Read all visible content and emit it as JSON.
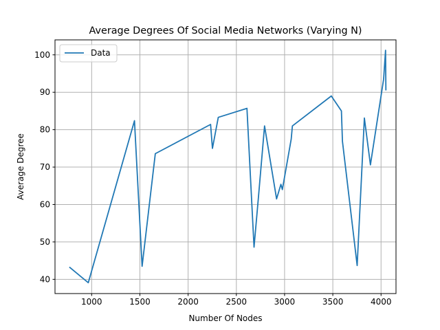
{
  "chart_data": {
    "type": "line",
    "title": "Average Degrees Of Social Media Networks (Varying N)",
    "xlabel": "Number Of Nodes",
    "ylabel": "Average Degree",
    "xlim": [
      620,
      4155
    ],
    "ylim": [
      36.2,
      104.0
    ],
    "xticks": [
      1000,
      1500,
      2000,
      2500,
      3000,
      3500,
      4000
    ],
    "yticks": [
      40,
      50,
      60,
      70,
      80,
      90,
      100
    ],
    "grid": true,
    "legend_position": "upper-left",
    "series": [
      {
        "name": "Data",
        "color": "#1f77b4",
        "x": [
          769,
          965,
          1444,
          1523,
          1660,
          2233,
          2252,
          2313,
          2610,
          2683,
          2728,
          2792,
          2917,
          2962,
          2977,
          3069,
          3081,
          3484,
          3589,
          3600,
          3752,
          3827,
          3890,
          4027,
          4047,
          4050
        ],
        "y": [
          43.3,
          39.1,
          82.4,
          43.5,
          73.6,
          81.4,
          75.0,
          83.3,
          85.7,
          48.6,
          61.7,
          81.0,
          61.5,
          65.4,
          64.0,
          77.5,
          81.0,
          89.0,
          85.0,
          76.9,
          43.7,
          83.1,
          70.6,
          93.5,
          101.2,
          90.5
        ]
      }
    ]
  }
}
